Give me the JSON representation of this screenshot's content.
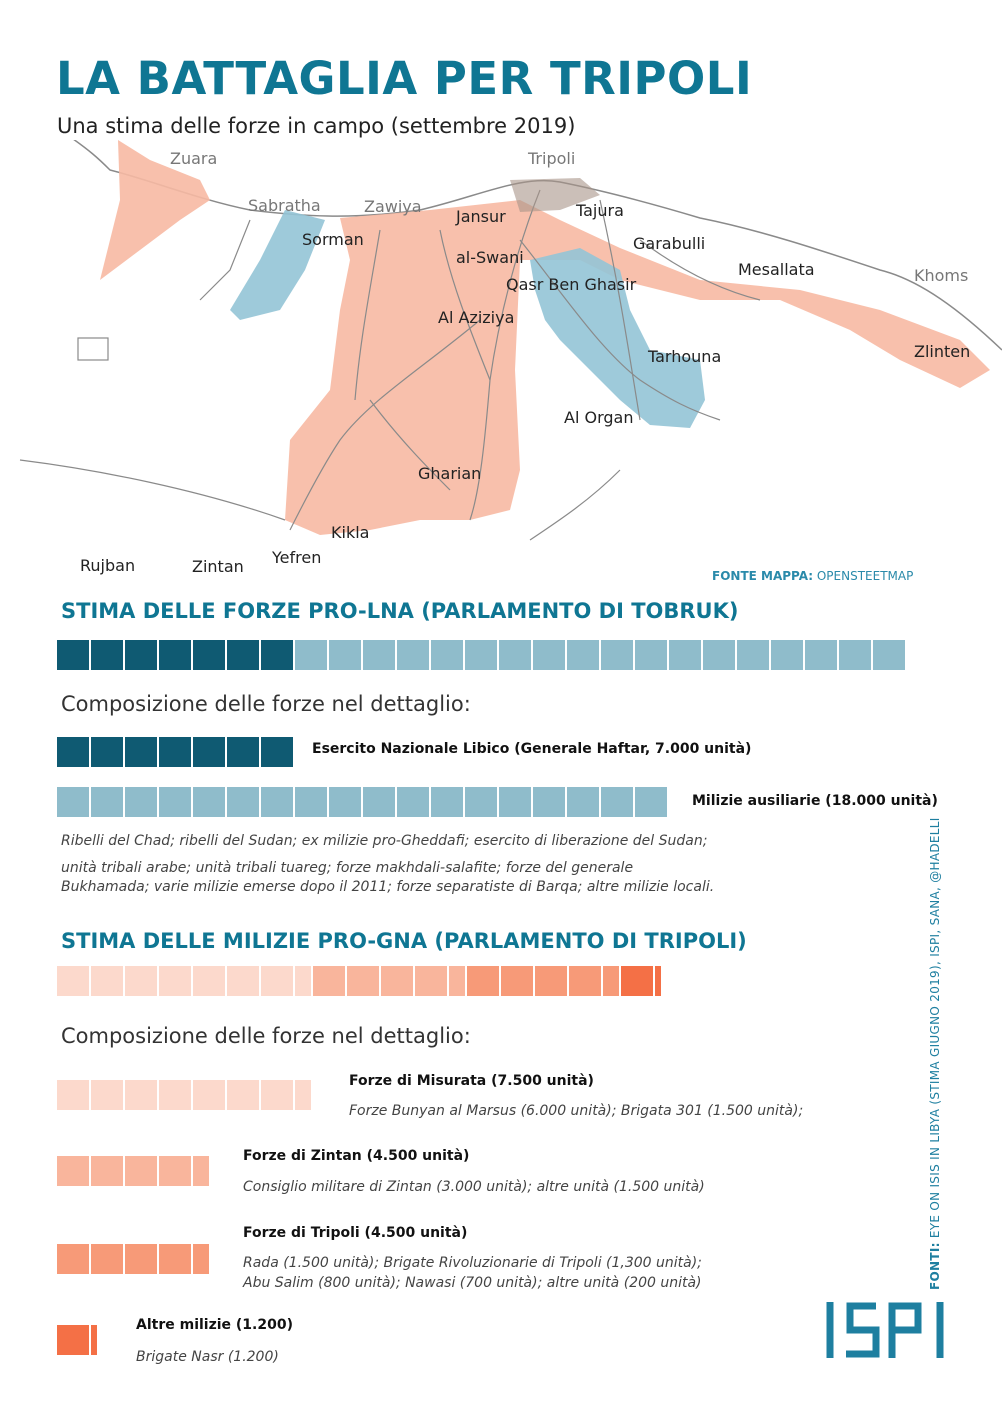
{
  "header": {
    "title": "LA BATTAGLIA PER TRIPOLI",
    "subtitle": "Una stima delle forze in campo (settembre 2019)"
  },
  "map": {
    "colors": {
      "lna_area": "#f7b9a3",
      "gna_area": "#93c4d6",
      "roads": "#8a8a8a",
      "urban": "#a89488"
    },
    "cities": {
      "zuara": "Zuara",
      "tripoli": "Tripoli",
      "sabratha": "Sabratha",
      "zawiya": "Zawiya",
      "sorman": "Sorman",
      "jansur": "Jansur",
      "tajura": "Tajura",
      "garabulli": "Garabulli",
      "al_swani": "al-Swani",
      "qasr_ben_ghasir": "Qasr Ben Ghasir",
      "mesallata": "Mesallata",
      "khoms": "Khoms",
      "al_aziziya": "Al Aziziya",
      "zlinten": "Zlinten",
      "tarhouna": "Tarhouna",
      "al_organ": "Al Organ",
      "gharian": "Gharian",
      "kikla": "Kikla",
      "rujban": "Rujban",
      "zintan": "Zintan",
      "yefren": "Yefren"
    },
    "source_label": "FONTE MAPPA:",
    "source_value": "OPENSTEETMAP"
  },
  "lna": {
    "heading": "STIMA DELLE FORZE PRO-LNA (PARLAMENTO DI TOBRUK)",
    "total_segments": [
      {
        "color": "#0f5a72",
        "count": 7
      },
      {
        "color": "#8fbccb",
        "count": 18
      }
    ],
    "detail_heading": "Composizione delle forze nel dettaglio:",
    "army": {
      "label": "Esercito Nazionale Libico (Generale Haftar, 7.000 unità)",
      "color": "#0f5a72",
      "count": 7
    },
    "militias": {
      "label": "Milizie ausiliarie (18.000 unità)",
      "color": "#8fbccb",
      "count": 18
    },
    "militias_desc": {
      "line1": "Ribelli del Chad; ribelli del Sudan; ex milizie pro-Gheddafi; esercito di liberazione del Sudan;",
      "line2": "unità tribali arabe; unità tribali tuareg; forze makhdali-salafite; forze del generale",
      "line3": "Bukhamada; varie milizie emerse dopo il 2011; forze separatiste di Barqa; altre milizie locali."
    }
  },
  "gna": {
    "heading": "STIMA DELLE MILIZIE PRO-GNA (PARLAMENTO DI TRIPOLI)",
    "total_segments": [
      {
        "color": "#fcd9cc",
        "count": 7.5
      },
      {
        "color": "#f9b59c",
        "count": 4.5
      },
      {
        "color": "#f79a78",
        "count": 4.5
      },
      {
        "color": "#f47046",
        "count": 1.2
      }
    ],
    "detail_heading": "Composizione delle forze nel dettaglio:",
    "misurata": {
      "label": "Forze di Misurata (7.500 unità)",
      "desc": "Forze Bunyan al Marsus (6.000 unità); Brigata 301 (1.500 unità);",
      "color": "#fcd9cc",
      "count": 7.5
    },
    "zintan": {
      "label": "Forze di Zintan (4.500 unità)",
      "desc": "Consiglio militare di Zintan (3.000 unità); altre unità (1.500 unità)",
      "color": "#f9b59c",
      "count": 4.5
    },
    "tripoli": {
      "label": "Forze di Tripoli (4.500 unità)",
      "desc1": "Rada (1.500 unità); Brigate Rivoluzionarie di Tripoli (1,300 unità);",
      "desc2": "Abu Salim (800 unità); Nawasi (700 unità); altre unità (200 unità)",
      "color": "#f79a78",
      "count": 4.5
    },
    "altre": {
      "label": "Altre milizie (1.200)",
      "desc": "Brigate Nasr (1.200)",
      "color": "#f47046",
      "count": 1.2
    }
  },
  "sources": {
    "label": "FONTI:",
    "text": "EYE ON ISIS  IN LIBYA (STIMA GIUGNO 2019), ISPI, SANA, @HADELLI"
  },
  "logo": {
    "text": "ISPI",
    "color": "#1e7fa0"
  }
}
